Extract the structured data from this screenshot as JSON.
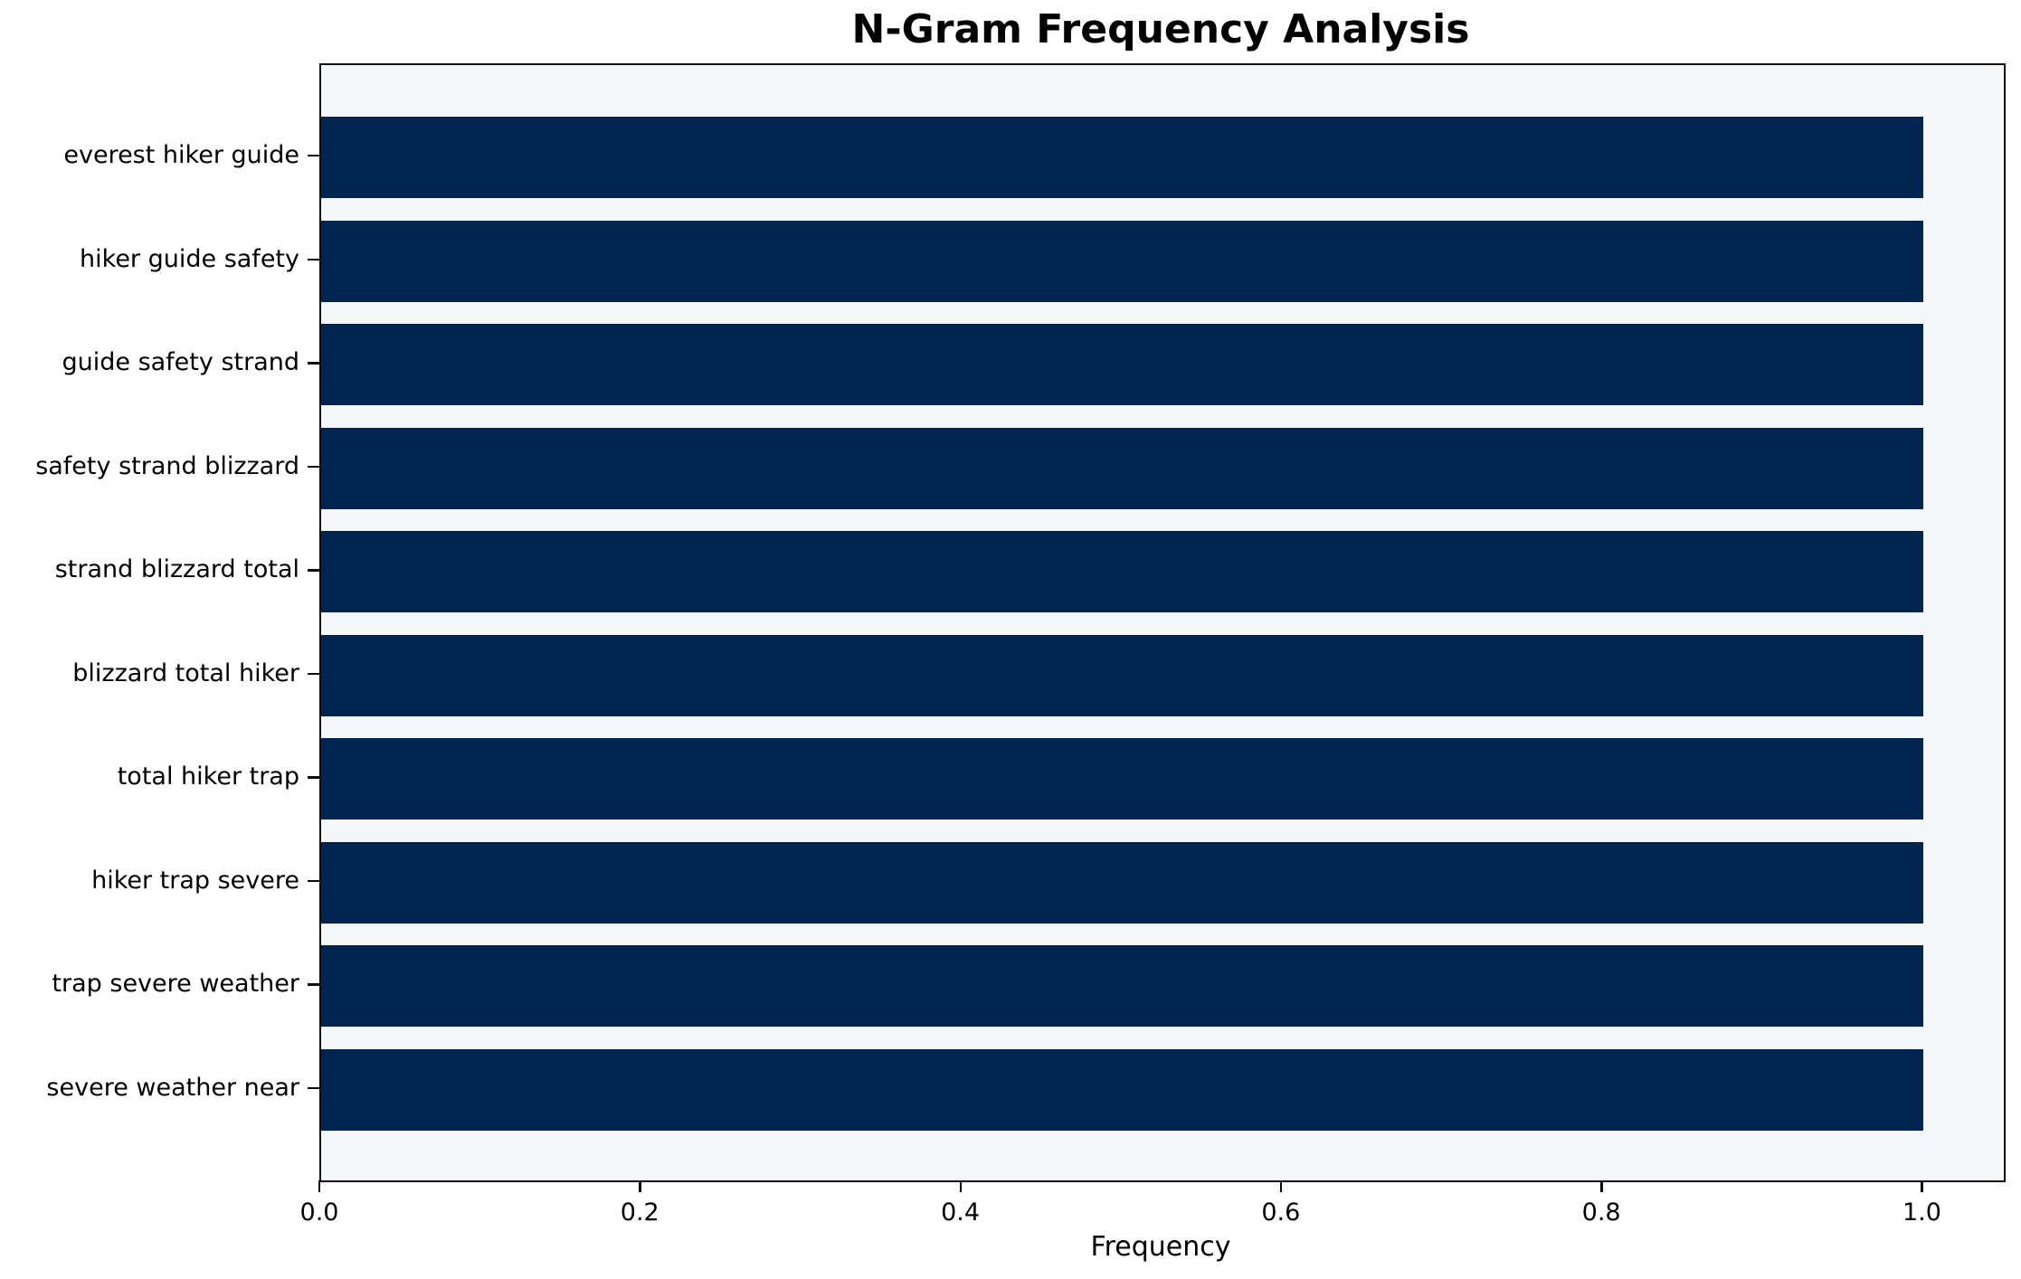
{
  "chart_data": {
    "type": "bar",
    "orientation": "horizontal",
    "title": "N-Gram Frequency Analysis",
    "xlabel": "Frequency",
    "categories": [
      "everest hiker guide",
      "hiker guide safety",
      "guide safety strand",
      "safety strand blizzard",
      "strand blizzard total",
      "blizzard total hiker",
      "total hiker trap",
      "hiker trap severe",
      "trap severe weather",
      "severe weather near"
    ],
    "values": [
      1.0,
      1.0,
      1.0,
      1.0,
      1.0,
      1.0,
      1.0,
      1.0,
      1.0,
      1.0
    ],
    "xlim": [
      0,
      1.05
    ],
    "x_ticks": [
      0.0,
      0.2,
      0.4,
      0.6,
      0.8,
      1.0
    ],
    "x_tick_labels": [
      "0.0",
      "0.2",
      "0.4",
      "0.6",
      "0.8",
      "1.0"
    ],
    "grid": false,
    "colors": {
      "bar": "#01254f",
      "plot_background": "#f6f7f9",
      "figure_background": "#ffffff",
      "spine": "#0a0a0a",
      "text": "#000000"
    }
  }
}
